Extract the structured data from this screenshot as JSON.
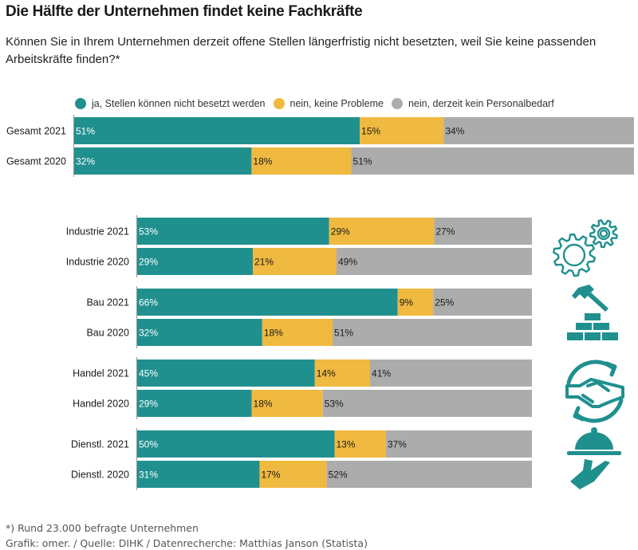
{
  "title": "Die Hälfte der Unternehmen findet keine Fachkräfte",
  "subtitle": "Können Sie in Ihrem Unternehmen derzeit offene Stellen längerfristig nicht besetzten, weil Sie keine passenden Arbeitskräfte finden?*",
  "footer": {
    "note": "*) Rund 23.000 befragte Unternehmen",
    "source": "Grafik: omer. / Quelle: DIHK / Datenrecherche: Matthias Janson (Statista)"
  },
  "colors": {
    "ja": "#20908f",
    "nein_probleme": "#f0b93f",
    "kein_bedarf": "#acacac",
    "icon": "#20908f"
  },
  "icons": [
    "gears-icon",
    "hammer-bricks-icon",
    "handshake-icon",
    "serving-tray-icon"
  ],
  "chart_data": {
    "type": "bar",
    "orientation": "horizontal",
    "stacked": true,
    "title": "Die Hälfte der Unternehmen findet keine Fachkräfte",
    "xlabel": "",
    "ylabel": "",
    "xlim": [
      0,
      100
    ],
    "grid": false,
    "legend_position": "top",
    "legend": [
      {
        "key": "ja",
        "label": "ja, Stellen können nicht besetzt werden"
      },
      {
        "key": "nein_probleme",
        "label": "nein, keine Probleme"
      },
      {
        "key": "kein_bedarf",
        "label": "nein, derzeit kein Personalbedarf"
      }
    ],
    "groups": [
      {
        "name": "Gesamt",
        "icon": null,
        "rows": [
          {
            "label": "Gesamt 2021",
            "values": [
              51,
              15,
              34
            ]
          },
          {
            "label": "Gesamt 2020",
            "values": [
              32,
              18,
              51
            ]
          }
        ]
      },
      {
        "name": "Industrie",
        "icon": "gears-icon",
        "rows": [
          {
            "label": "Industrie 2021",
            "values": [
              53,
              29,
              27
            ]
          },
          {
            "label": "Industrie 2020",
            "values": [
              29,
              21,
              49
            ]
          }
        ]
      },
      {
        "name": "Bau",
        "icon": "hammer-bricks-icon",
        "rows": [
          {
            "label": "Bau 2021",
            "values": [
              66,
              9,
              25
            ]
          },
          {
            "label": "Bau 2020",
            "values": [
              32,
              18,
              51
            ]
          }
        ]
      },
      {
        "name": "Handel",
        "icon": "handshake-icon",
        "rows": [
          {
            "label": "Handel 2021",
            "values": [
              45,
              14,
              41
            ]
          },
          {
            "label": "Handel 2020",
            "values": [
              29,
              18,
              53
            ]
          }
        ]
      },
      {
        "name": "Dienstl.",
        "icon": "serving-tray-icon",
        "rows": [
          {
            "label": "Dienstl. 2021",
            "values": [
              50,
              13,
              37
            ]
          },
          {
            "label": "Dienstl. 2020",
            "values": [
              31,
              17,
              52
            ]
          }
        ]
      }
    ],
    "unit": "%"
  }
}
